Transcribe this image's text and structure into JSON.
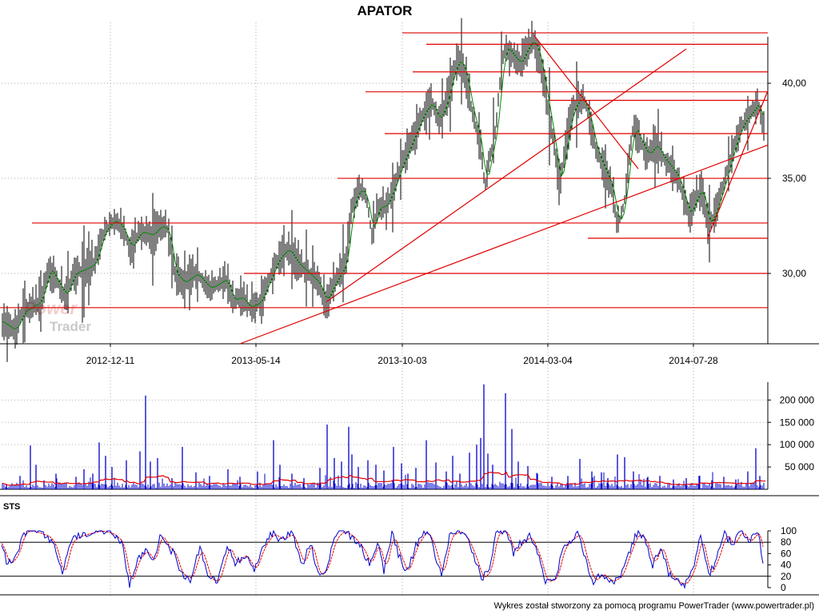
{
  "chart_data": [
    {
      "panel": "price",
      "type": "ohlc",
      "title": "APATOR",
      "date_ticks": [
        "2012-12-11",
        "2013-05-14",
        "2013-10-03",
        "2014-03-04",
        "2014-07-28"
      ],
      "y_ticks": [
        "30,00",
        "35,00",
        "40,00"
      ],
      "ylim": [
        26.3,
        43.2
      ],
      "price_path": [
        [
          0,
          27.5
        ],
        [
          18,
          27.0
        ],
        [
          30,
          28.0
        ],
        [
          50,
          28.5
        ],
        [
          62,
          30.3
        ],
        [
          72,
          29.5
        ],
        [
          82,
          28.8
        ],
        [
          92,
          30.0
        ],
        [
          105,
          30.2
        ],
        [
          118,
          30.5
        ],
        [
          130,
          32.2
        ],
        [
          142,
          32.8
        ],
        [
          152,
          32.5
        ],
        [
          163,
          31.3
        ],
        [
          175,
          32.2
        ],
        [
          190,
          32.0
        ],
        [
          200,
          32.5
        ],
        [
          210,
          32.3
        ],
        [
          218,
          30.0
        ],
        [
          230,
          29.5
        ],
        [
          245,
          30.0
        ],
        [
          262,
          29.2
        ],
        [
          282,
          29.7
        ],
        [
          292,
          28.5
        ],
        [
          300,
          28.8
        ],
        [
          312,
          28.2
        ],
        [
          325,
          28.5
        ],
        [
          335,
          29.5
        ],
        [
          348,
          30.8
        ],
        [
          360,
          31.3
        ],
        [
          372,
          30.5
        ],
        [
          385,
          30.0
        ],
        [
          398,
          29.5
        ],
        [
          407,
          28.5
        ],
        [
          418,
          29.5
        ],
        [
          432,
          30.5
        ],
        [
          440,
          33.5
        ],
        [
          450,
          34.5
        ],
        [
          458,
          34.0
        ],
        [
          465,
          32.0
        ],
        [
          472,
          33.5
        ],
        [
          482,
          33.5
        ],
        [
          492,
          34.5
        ],
        [
          500,
          35.5
        ],
        [
          510,
          36.5
        ],
        [
          520,
          37.5
        ],
        [
          530,
          38.5
        ],
        [
          540,
          39.0
        ],
        [
          548,
          38.0
        ],
        [
          558,
          39.0
        ],
        [
          566,
          40.5
        ],
        [
          574,
          41.3
        ],
        [
          582,
          40.5
        ],
        [
          590,
          38.5
        ],
        [
          600,
          37.0
        ],
        [
          606,
          34.5
        ],
        [
          612,
          36.0
        ],
        [
          620,
          37.5
        ],
        [
          626,
          40.5
        ],
        [
          632,
          42.0
        ],
        [
          640,
          41.5
        ],
        [
          650,
          41.0
        ],
        [
          658,
          41.8
        ],
        [
          666,
          42.3
        ],
        [
          674,
          41.5
        ],
        [
          680,
          40.0
        ],
        [
          686,
          38.5
        ],
        [
          692,
          37.0
        ],
        [
          700,
          34.5
        ],
        [
          706,
          36.5
        ],
        [
          712,
          38.0
        ],
        [
          720,
          39.0
        ],
        [
          728,
          39.2
        ],
        [
          735,
          38.5
        ],
        [
          745,
          36.5
        ],
        [
          755,
          35.5
        ],
        [
          765,
          34.5
        ],
        [
          772,
          32.5
        ],
        [
          780,
          33.5
        ],
        [
          786,
          36.0
        ],
        [
          792,
          37.8
        ],
        [
          800,
          37.0
        ],
        [
          810,
          36.2
        ],
        [
          820,
          36.8
        ],
        [
          830,
          36.0
        ],
        [
          840,
          35.5
        ],
        [
          848,
          35.0
        ],
        [
          855,
          34.0
        ],
        [
          862,
          33.0
        ],
        [
          870,
          34.0
        ],
        [
          878,
          34.5
        ],
        [
          885,
          32.5
        ],
        [
          892,
          33.0
        ],
        [
          900,
          34.0
        ],
        [
          910,
          35.5
        ],
        [
          920,
          37.0
        ],
        [
          930,
          38.0
        ],
        [
          940,
          38.5
        ],
        [
          948,
          39.0
        ],
        [
          955,
          37.5
        ]
      ],
      "horizontal_levels": [
        {
          "x1": 503,
          "x2": 960,
          "y": 42.65
        },
        {
          "x1": 533,
          "x2": 960,
          "y": 42.05
        },
        {
          "x1": 516,
          "x2": 960,
          "y": 40.6
        },
        {
          "x1": 457,
          "x2": 960,
          "y": 39.55
        },
        {
          "x1": 687,
          "x2": 960,
          "y": 39.1
        },
        {
          "x1": 481,
          "x2": 960,
          "y": 37.35
        },
        {
          "x1": 422,
          "x2": 960,
          "y": 35.0
        },
        {
          "x1": 40,
          "x2": 960,
          "y": 32.65
        },
        {
          "x1": 735,
          "x2": 960,
          "y": 31.85
        },
        {
          "x1": 305,
          "x2": 960,
          "y": 30.0
        },
        {
          "x1": 0,
          "x2": 960,
          "y": 28.2
        }
      ],
      "trend_lines": [
        {
          "x1": 300,
          "y1": 26.3,
          "x2": 960,
          "y2": 36.75
        },
        {
          "x1": 408,
          "y1": 28.5,
          "x2": 858,
          "y2": 41.8
        },
        {
          "x1": 668,
          "y1": 42.5,
          "x2": 798,
          "y2": 35.5
        },
        {
          "x1": 885,
          "y1": 31.9,
          "x2": 960,
          "y2": 39.6
        }
      ]
    },
    {
      "panel": "volume",
      "type": "bar",
      "y_ticks": [
        "50 000",
        "100 000",
        "150 000",
        "200 000"
      ],
      "ylim": [
        0,
        240000
      ],
      "colors": {
        "bars": "#0000cc",
        "average": "#e00000"
      },
      "spikes": [
        [
          8,
          12000
        ],
        [
          25,
          30000
        ],
        [
          38,
          98000
        ],
        [
          45,
          55000
        ],
        [
          55,
          20000
        ],
        [
          70,
          35000
        ],
        [
          95,
          28000
        ],
        [
          105,
          45000
        ],
        [
          116,
          35000
        ],
        [
          124,
          105000
        ],
        [
          132,
          75000
        ],
        [
          140,
          50000
        ],
        [
          158,
          65000
        ],
        [
          175,
          85000
        ],
        [
          182,
          210000
        ],
        [
          188,
          62000
        ],
        [
          197,
          70000
        ],
        [
          215,
          25000
        ],
        [
          228,
          95000
        ],
        [
          245,
          38000
        ],
        [
          262,
          30000
        ],
        [
          285,
          45000
        ],
        [
          300,
          28000
        ],
        [
          322,
          40000
        ],
        [
          342,
          110000
        ],
        [
          350,
          55000
        ],
        [
          365,
          35000
        ],
        [
          380,
          25000
        ],
        [
          400,
          48000
        ],
        [
          409,
          145000
        ],
        [
          418,
          70000
        ],
        [
          427,
          62000
        ],
        [
          436,
          140000
        ],
        [
          440,
          78000
        ],
        [
          448,
          50000
        ],
        [
          460,
          65000
        ],
        [
          470,
          55000
        ],
        [
          480,
          42000
        ],
        [
          492,
          95000
        ],
        [
          502,
          58000
        ],
        [
          510,
          35000
        ],
        [
          520,
          48000
        ],
        [
          533,
          110000
        ],
        [
          545,
          60000
        ],
        [
          558,
          40000
        ],
        [
          566,
          75000
        ],
        [
          575,
          35000
        ],
        [
          587,
          82000
        ],
        [
          596,
          100000
        ],
        [
          601,
          115000
        ],
        [
          605,
          235000
        ],
        [
          610,
          80000
        ],
        [
          616,
          55000
        ],
        [
          632,
          215000
        ],
        [
          640,
          135000
        ],
        [
          648,
          62000
        ],
        [
          660,
          52000
        ],
        [
          672,
          35000
        ],
        [
          690,
          28000
        ],
        [
          710,
          30000
        ],
        [
          725,
          68000
        ],
        [
          740,
          40000
        ],
        [
          752,
          38000
        ],
        [
          760,
          25000
        ],
        [
          772,
          78000
        ],
        [
          781,
          72000
        ],
        [
          792,
          40000
        ],
        [
          810,
          28000
        ],
        [
          825,
          30000
        ],
        [
          842,
          22000
        ],
        [
          858,
          25000
        ],
        [
          874,
          30000
        ],
        [
          890,
          20000
        ],
        [
          905,
          28000
        ],
        [
          920,
          22000
        ],
        [
          935,
          40000
        ],
        [
          945,
          92000
        ],
        [
          950,
          30000
        ]
      ]
    },
    {
      "panel": "stochastic",
      "type": "line",
      "label": "STS",
      "y_ticks": [
        "0",
        "20",
        "40",
        "60",
        "80",
        "100"
      ],
      "ylim": [
        0,
        100
      ],
      "reference_levels": [
        20,
        80
      ],
      "colors": {
        "k": "#0000cc",
        "d": "#e00000"
      },
      "k_path": [
        [
          0,
          80
        ],
        [
          10,
          40
        ],
        [
          20,
          55
        ],
        [
          30,
          98
        ],
        [
          40,
          100
        ],
        [
          50,
          95
        ],
        [
          60,
          90
        ],
        [
          68,
          75
        ],
        [
          78,
          20
        ],
        [
          88,
          80
        ],
        [
          98,
          90
        ],
        [
          110,
          95
        ],
        [
          125,
          100
        ],
        [
          140,
          95
        ],
        [
          152,
          80
        ],
        [
          162,
          5
        ],
        [
          172,
          50
        ],
        [
          182,
          65
        ],
        [
          192,
          45
        ],
        [
          200,
          95
        ],
        [
          210,
          70
        ],
        [
          218,
          60
        ],
        [
          225,
          25
        ],
        [
          238,
          15
        ],
        [
          250,
          70
        ],
        [
          262,
          15
        ],
        [
          272,
          10
        ],
        [
          285,
          75
        ],
        [
          295,
          40
        ],
        [
          305,
          60
        ],
        [
          318,
          30
        ],
        [
          328,
          70
        ],
        [
          340,
          95
        ],
        [
          352,
          85
        ],
        [
          365,
          95
        ],
        [
          378,
          40
        ],
        [
          388,
          80
        ],
        [
          398,
          20
        ],
        [
          407,
          30
        ],
        [
          418,
          85
        ],
        [
          428,
          100
        ],
        [
          440,
          90
        ],
        [
          452,
          70
        ],
        [
          462,
          40
        ],
        [
          472,
          80
        ],
        [
          480,
          30
        ],
        [
          490,
          95
        ],
        [
          498,
          60
        ],
        [
          508,
          25
        ],
        [
          520,
          75
        ],
        [
          532,
          100
        ],
        [
          540,
          80
        ],
        [
          552,
          20
        ],
        [
          562,
          90
        ],
        [
          574,
          100
        ],
        [
          584,
          85
        ],
        [
          594,
          50
        ],
        [
          602,
          15
        ],
        [
          612,
          30
        ],
        [
          620,
          95
        ],
        [
          632,
          100
        ],
        [
          642,
          60
        ],
        [
          652,
          80
        ],
        [
          662,
          90
        ],
        [
          672,
          60
        ],
        [
          682,
          10
        ],
        [
          694,
          15
        ],
        [
          704,
          70
        ],
        [
          714,
          85
        ],
        [
          724,
          95
        ],
        [
          734,
          40
        ],
        [
          742,
          10
        ],
        [
          752,
          25
        ],
        [
          764,
          10
        ],
        [
          776,
          20
        ],
        [
          786,
          60
        ],
        [
          796,
          95
        ],
        [
          806,
          85
        ],
        [
          816,
          40
        ],
        [
          826,
          75
        ],
        [
          836,
          25
        ],
        [
          846,
          10
        ],
        [
          856,
          5
        ],
        [
          866,
          30
        ],
        [
          876,
          90
        ],
        [
          886,
          20
        ],
        [
          896,
          50
        ],
        [
          906,
          95
        ],
        [
          916,
          75
        ],
        [
          926,
          100
        ],
        [
          936,
          80
        ],
        [
          948,
          100
        ],
        [
          955,
          35
        ]
      ]
    }
  ],
  "footer": "Wykres został stworzony za pomocą programu PowerTrader (www.powertrader.pl)",
  "watermark": {
    "line1": "Power",
    "line2": "Trader"
  }
}
